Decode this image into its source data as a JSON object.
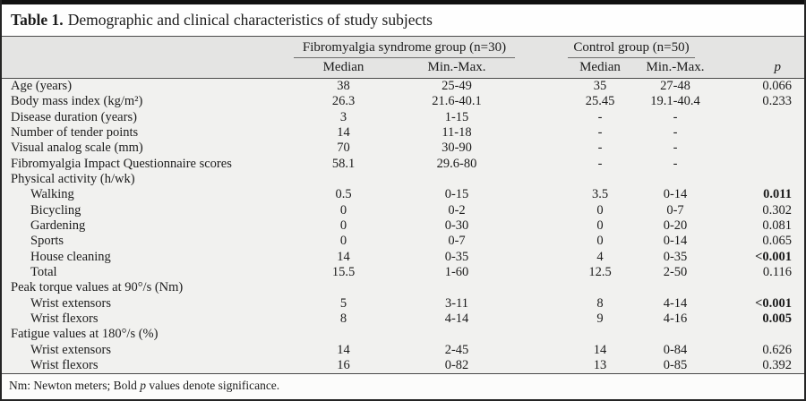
{
  "title": {
    "label": "Table 1.",
    "caption": "Demographic and clinical characteristics of study subjects"
  },
  "header": {
    "fms_group": "Fibromyalgia syndrome group (n=30)",
    "control_group": "Control group (n=50)",
    "fms_median": "Median",
    "fms_minmax": "Min.-Max.",
    "control_median": "Median",
    "control_minmax": "Min.-Max.",
    "p": "p"
  },
  "rows": [
    {
      "label": "Age (years)",
      "indent": false,
      "section": false,
      "fms_median": "38",
      "fms_minmax": "25-49",
      "control_median": "35",
      "control_minmax": "27-48",
      "p": "0.066",
      "p_bold": false
    },
    {
      "label": "Body mass index (kg/m²)",
      "indent": false,
      "section": false,
      "fms_median": "26.3",
      "fms_minmax": "21.6-40.1",
      "control_median": "25.45",
      "control_minmax": "19.1-40.4",
      "p": "0.233",
      "p_bold": false
    },
    {
      "label": "Disease duration (years)",
      "indent": false,
      "section": false,
      "fms_median": "3",
      "fms_minmax": "1-15",
      "control_median": "-",
      "control_minmax": "-",
      "p": "",
      "p_bold": false
    },
    {
      "label": "Number of tender points",
      "indent": false,
      "section": false,
      "fms_median": "14",
      "fms_minmax": "11-18",
      "control_median": "-",
      "control_minmax": "-",
      "p": "",
      "p_bold": false
    },
    {
      "label": "Visual analog scale (mm)",
      "indent": false,
      "section": false,
      "fms_median": "70",
      "fms_minmax": "30-90",
      "control_median": "-",
      "control_minmax": "-",
      "p": "",
      "p_bold": false
    },
    {
      "label": "Fibromyalgia Impact Questionnaire scores",
      "indent": false,
      "section": false,
      "fms_median": "58.1",
      "fms_minmax": "29.6-80",
      "control_median": "-",
      "control_minmax": "-",
      "p": "",
      "p_bold": false
    },
    {
      "label": "Physical activity (h/wk)",
      "indent": false,
      "section": true,
      "fms_median": "",
      "fms_minmax": "",
      "control_median": "",
      "control_minmax": "",
      "p": "",
      "p_bold": false
    },
    {
      "label": "Walking",
      "indent": true,
      "section": false,
      "fms_median": "0.5",
      "fms_minmax": "0-15",
      "control_median": "3.5",
      "control_minmax": "0-14",
      "p": "0.011",
      "p_bold": true
    },
    {
      "label": "Bicycling",
      "indent": true,
      "section": false,
      "fms_median": "0",
      "fms_minmax": "0-2",
      "control_median": "0",
      "control_minmax": "0-7",
      "p": "0.302",
      "p_bold": false
    },
    {
      "label": "Gardening",
      "indent": true,
      "section": false,
      "fms_median": "0",
      "fms_minmax": "0-30",
      "control_median": "0",
      "control_minmax": "0-20",
      "p": "0.081",
      "p_bold": false
    },
    {
      "label": "Sports",
      "indent": true,
      "section": false,
      "fms_median": "0",
      "fms_minmax": "0-7",
      "control_median": "0",
      "control_minmax": "0-14",
      "p": "0.065",
      "p_bold": false
    },
    {
      "label": "House cleaning",
      "indent": true,
      "section": false,
      "fms_median": "14",
      "fms_minmax": "0-35",
      "control_median": "4",
      "control_minmax": "0-35",
      "p": "<0.001",
      "p_bold": true
    },
    {
      "label": "Total",
      "indent": true,
      "section": false,
      "fms_median": "15.5",
      "fms_minmax": "1-60",
      "control_median": "12.5",
      "control_minmax": "2-50",
      "p": "0.116",
      "p_bold": false
    },
    {
      "label": "Peak torque values at 90°/s (Nm)",
      "indent": false,
      "section": true,
      "fms_median": "",
      "fms_minmax": "",
      "control_median": "",
      "control_minmax": "",
      "p": "",
      "p_bold": false
    },
    {
      "label": "Wrist extensors",
      "indent": true,
      "section": false,
      "fms_median": "5",
      "fms_minmax": "3-11",
      "control_median": "8",
      "control_minmax": "4-14",
      "p": "<0.001",
      "p_bold": true
    },
    {
      "label": "Wrist flexors",
      "indent": true,
      "section": false,
      "fms_median": "8",
      "fms_minmax": "4-14",
      "control_median": "9",
      "control_minmax": "4-16",
      "p": "0.005",
      "p_bold": true
    },
    {
      "label": "Fatigue values at 180°/s (%)",
      "indent": false,
      "section": true,
      "fms_median": "",
      "fms_minmax": "",
      "control_median": "",
      "control_minmax": "",
      "p": "",
      "p_bold": false
    },
    {
      "label": "Wrist extensors",
      "indent": true,
      "section": false,
      "fms_median": "14",
      "fms_minmax": "2-45",
      "control_median": "14",
      "control_minmax": "0-84",
      "p": "0.626",
      "p_bold": false
    },
    {
      "label": "Wrist flexors",
      "indent": true,
      "section": false,
      "fms_median": "16",
      "fms_minmax": "0-82",
      "control_median": "13",
      "control_minmax": "0-85",
      "p": "0.392",
      "p_bold": false
    }
  ],
  "footnote": {
    "pre": "Nm: Newton meters; Bold ",
    "p": "p",
    "post": " values denote significance."
  },
  "colors": {
    "header_bg": "#e4e4e3",
    "body_bg": "#f1f1ef",
    "rule": "#4a4a4a",
    "top_bar": "#111111",
    "text": "#1c1c1c"
  }
}
